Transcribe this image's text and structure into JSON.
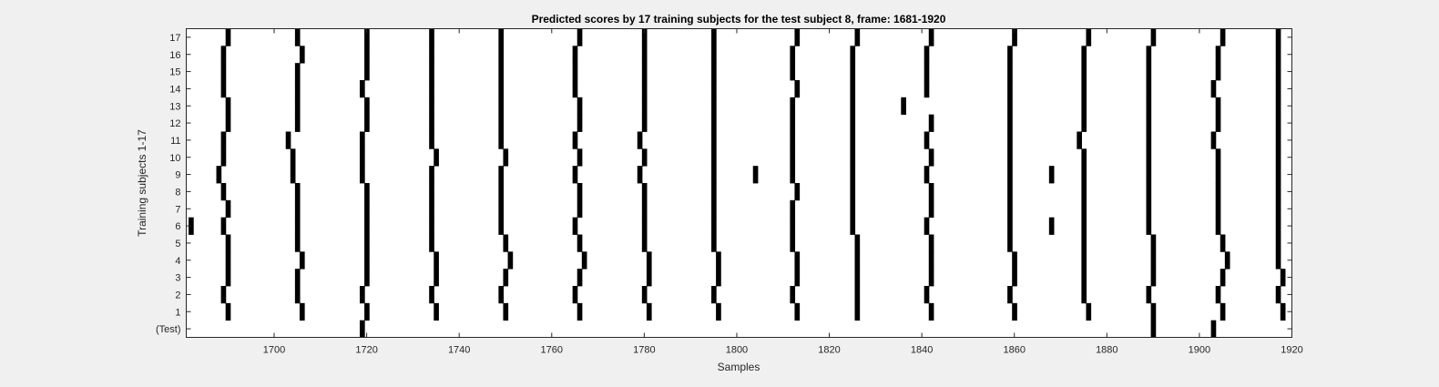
{
  "chart_data": {
    "type": "heatmap",
    "title": "Predicted scores by 17 training subjects for the test subject 8, frame: 1681-1920",
    "xlabel": "Samples",
    "ylabel": "Training subjects 1-17",
    "xlim": [
      1681,
      1920
    ],
    "x_ticks": [
      1700,
      1720,
      1740,
      1760,
      1780,
      1800,
      1820,
      1840,
      1860,
      1880,
      1900,
      1920
    ],
    "y_tick_labels": [
      "(Test)",
      "1",
      "2",
      "3",
      "4",
      "5",
      "6",
      "7",
      "8",
      "9",
      "10",
      "11",
      "12",
      "13",
      "14",
      "15",
      "16",
      "17"
    ],
    "colors": {
      "mark": "#000000",
      "background": "#ffffff",
      "figure": "#f0f0f0"
    },
    "rows": [
      {
        "label": "(Test)",
        "samples": [
          1719,
          1890,
          1903
        ]
      },
      {
        "label": "1",
        "samples": [
          1690,
          1706,
          1720,
          1735,
          1750,
          1766,
          1781,
          1796,
          1813,
          1826,
          1842,
          1860,
          1876,
          1890,
          1905,
          1918
        ]
      },
      {
        "label": "2",
        "samples": [
          1689,
          1705,
          1719,
          1734,
          1749,
          1765,
          1780,
          1795,
          1812,
          1826,
          1841,
          1859,
          1875,
          1889,
          1904,
          1917
        ]
      },
      {
        "label": "3",
        "samples": [
          1690,
          1705,
          1720,
          1735,
          1750,
          1766,
          1781,
          1796,
          1813,
          1826,
          1842,
          1860,
          1875,
          1890,
          1905,
          1918
        ]
      },
      {
        "label": "4",
        "samples": [
          1690,
          1706,
          1720,
          1735,
          1751,
          1767,
          1781,
          1796,
          1813,
          1826,
          1842,
          1860,
          1875,
          1890,
          1906,
          1917
        ]
      },
      {
        "label": "5",
        "samples": [
          1690,
          1705,
          1720,
          1734,
          1750,
          1766,
          1780,
          1795,
          1812,
          1826,
          1842,
          1859,
          1875,
          1890,
          1905,
          1917
        ]
      },
      {
        "label": "6",
        "samples": [
          1682,
          1689,
          1705,
          1720,
          1734,
          1749,
          1765,
          1780,
          1795,
          1812,
          1825,
          1841,
          1859,
          1868,
          1875,
          1889,
          1904,
          1917
        ]
      },
      {
        "label": "7",
        "samples": [
          1690,
          1705,
          1720,
          1734,
          1749,
          1766,
          1780,
          1795,
          1812,
          1825,
          1842,
          1859,
          1875,
          1889,
          1904,
          1917
        ]
      },
      {
        "label": "8",
        "samples": [
          1689,
          1705,
          1720,
          1734,
          1749,
          1766,
          1780,
          1795,
          1813,
          1825,
          1842,
          1859,
          1875,
          1889,
          1904,
          1917
        ]
      },
      {
        "label": "9",
        "samples": [
          1688,
          1704,
          1719,
          1734,
          1749,
          1765,
          1779,
          1795,
          1804,
          1812,
          1825,
          1841,
          1859,
          1868,
          1875,
          1889,
          1904,
          1917
        ]
      },
      {
        "label": "10",
        "samples": [
          1689,
          1704,
          1719,
          1735,
          1750,
          1766,
          1780,
          1795,
          1812,
          1825,
          1842,
          1859,
          1875,
          1889,
          1904,
          1917
        ]
      },
      {
        "label": "11",
        "samples": [
          1689,
          1703,
          1719,
          1734,
          1749,
          1765,
          1779,
          1795,
          1812,
          1825,
          1841,
          1859,
          1874,
          1889,
          1903,
          1917
        ]
      },
      {
        "label": "12",
        "samples": [
          1690,
          1705,
          1720,
          1734,
          1749,
          1766,
          1780,
          1795,
          1812,
          1825,
          1842,
          1859,
          1875,
          1889,
          1904,
          1917
        ]
      },
      {
        "label": "13",
        "samples": [
          1690,
          1705,
          1720,
          1734,
          1749,
          1766,
          1780,
          1795,
          1812,
          1825,
          1836,
          1859,
          1875,
          1889,
          1904,
          1917
        ]
      },
      {
        "label": "14",
        "samples": [
          1689,
          1705,
          1719,
          1734,
          1749,
          1765,
          1780,
          1795,
          1813,
          1825,
          1841,
          1859,
          1875,
          1889,
          1903,
          1917
        ]
      },
      {
        "label": "15",
        "samples": [
          1689,
          1705,
          1720,
          1734,
          1749,
          1765,
          1780,
          1795,
          1812,
          1825,
          1841,
          1859,
          1875,
          1889,
          1904,
          1917
        ]
      },
      {
        "label": "16",
        "samples": [
          1689,
          1706,
          1720,
          1734,
          1749,
          1765,
          1780,
          1795,
          1812,
          1825,
          1841,
          1859,
          1875,
          1889,
          1904,
          1917
        ]
      },
      {
        "label": "17",
        "samples": [
          1690,
          1705,
          1720,
          1734,
          1749,
          1766,
          1780,
          1795,
          1813,
          1826,
          1842,
          1860,
          1876,
          1890,
          1905,
          1917
        ]
      }
    ]
  }
}
